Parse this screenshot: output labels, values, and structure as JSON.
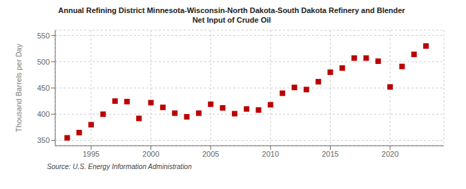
{
  "chart_data": {
    "type": "scatter",
    "title": "Annual Refining District Minnesota-Wisconsin-North Dakota-South Dakota Refinery and Blender",
    "subtitle": "Net Input of Crude Oil",
    "ylabel": "Thousand Barrels per Day",
    "annotations": [
      "Source: U.S. Energy Information Administration"
    ],
    "x": [
      1993,
      1994,
      1995,
      1996,
      1997,
      1998,
      1999,
      2000,
      2001,
      2002,
      2003,
      2004,
      2005,
      2006,
      2007,
      2008,
      2009,
      2010,
      2011,
      2012,
      2013,
      2014,
      2015,
      2016,
      2017,
      2018,
      2019,
      2020,
      2021,
      2022,
      2023
    ],
    "values": [
      355,
      365,
      380,
      400,
      425,
      424,
      392,
      422,
      413,
      402,
      395,
      402,
      419,
      412,
      401,
      410,
      408,
      418,
      440,
      451,
      447,
      462,
      480,
      488,
      507,
      507,
      501,
      452,
      491,
      514,
      530
    ],
    "color": "#bb0000",
    "marker": "square",
    "xlim": [
      1992.0,
      2024.5
    ],
    "xticks": [
      1995,
      2000,
      2005,
      2010,
      2015,
      2020
    ],
    "ylim": [
      340,
      560
    ],
    "yticks": [
      350,
      400,
      450,
      500,
      550
    ],
    "grid": true
  }
}
